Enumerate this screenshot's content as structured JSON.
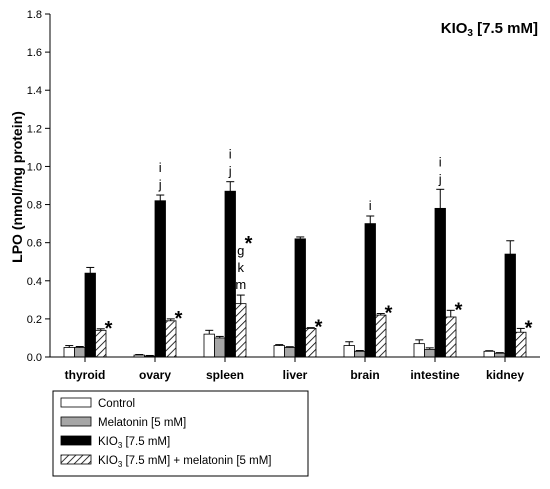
{
  "chart_data": {
    "type": "bar",
    "corner_label_main": "KIO",
    "corner_label_sub": "3",
    "corner_label_rest": " [7.5 mM]",
    "ylabel": "LPO (nmol/mg protein)",
    "ylim": [
      0.0,
      1.8
    ],
    "yticks": [
      "0.0",
      "0.2",
      "0.4",
      "0.6",
      "0.8",
      "1.0",
      "1.2",
      "1.4",
      "1.6",
      "1.8"
    ],
    "categories": [
      "thyroid",
      "ovary",
      "spleen",
      "liver",
      "brain",
      "intestine",
      "kidney"
    ],
    "series": [
      {
        "name": "Control",
        "fill": "#ffffff",
        "pattern": "none",
        "values": [
          0.05,
          0.01,
          0.12,
          0.06,
          0.06,
          0.07,
          0.03
        ],
        "errors": [
          0.01,
          0.003,
          0.02,
          0.005,
          0.02,
          0.02,
          0.003
        ]
      },
      {
        "name": "Melatonin [5 mM]",
        "fill": "#a6a6a6",
        "pattern": "none",
        "values": [
          0.05,
          0.005,
          0.1,
          0.05,
          0.03,
          0.04,
          0.02
        ],
        "errors": [
          0.005,
          0.003,
          0.008,
          0.004,
          0.004,
          0.008,
          0.003
        ]
      },
      {
        "name": "KIO3 [7.5 mM]",
        "fill": "#000000",
        "pattern": "none",
        "values": [
          0.44,
          0.82,
          0.87,
          0.62,
          0.7,
          0.78,
          0.54
        ],
        "errors": [
          0.03,
          0.03,
          0.05,
          0.01,
          0.04,
          0.1,
          0.07
        ]
      },
      {
        "name": "KIO3 [7.5 mM] + melatonin [5 mM]",
        "fill": "#ffffff",
        "pattern": "hatch",
        "values": [
          0.14,
          0.19,
          0.28,
          0.15,
          0.22,
          0.21,
          0.13
        ],
        "errors": [
          0.008,
          0.01,
          0.045,
          0.004,
          0.008,
          0.035,
          0.02
        ]
      }
    ],
    "annotations": [
      {
        "category": 0,
        "series": 3,
        "text": "*"
      },
      {
        "category": 1,
        "series": 2,
        "text": "i"
      },
      {
        "category": 1,
        "series": 2,
        "text": "j"
      },
      {
        "category": 1,
        "series": 3,
        "text": "*"
      },
      {
        "category": 2,
        "series": 2,
        "text": "i"
      },
      {
        "category": 2,
        "series": 2,
        "text": "j"
      },
      {
        "category": 2,
        "series": 3,
        "text": "*"
      },
      {
        "category": 2,
        "series": 3,
        "text": "g"
      },
      {
        "category": 2,
        "series": 3,
        "text": "k"
      },
      {
        "category": 2,
        "series": 3,
        "text": "m"
      },
      {
        "category": 3,
        "series": 3,
        "text": "*"
      },
      {
        "category": 4,
        "series": 2,
        "text": "i"
      },
      {
        "category": 4,
        "series": 3,
        "text": "*"
      },
      {
        "category": 5,
        "series": 2,
        "text": "i"
      },
      {
        "category": 5,
        "series": 2,
        "text": "j"
      },
      {
        "category": 5,
        "series": 3,
        "text": "*"
      },
      {
        "category": 6,
        "series": 3,
        "text": "*"
      }
    ],
    "legend": {
      "placement": "bottom-left",
      "items": [
        {
          "main": "Control",
          "sub": "",
          "rest": ""
        },
        {
          "main": "Melatonin [5 mM]",
          "sub": "",
          "rest": ""
        },
        {
          "main": "KIO",
          "sub": "3",
          "rest": " [7.5 mM]"
        },
        {
          "main": "KIO",
          "sub": "3",
          "rest": " [7.5 mM] + melatonin [5 mM]"
        }
      ]
    },
    "grid": false
  }
}
